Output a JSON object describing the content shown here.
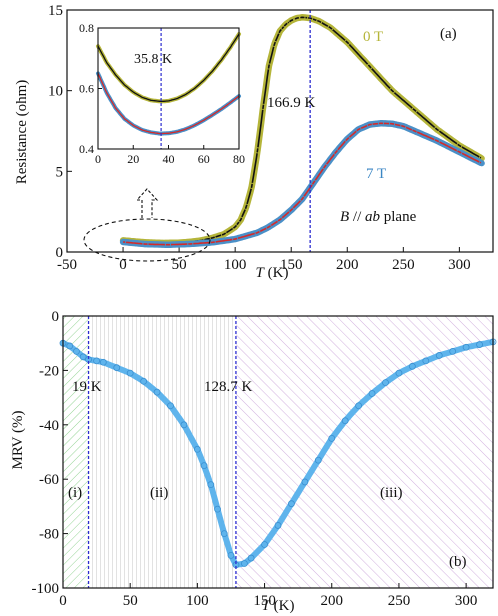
{
  "chart_data": [
    {
      "type": "scatter",
      "panel_label": "(a)",
      "xlabel_main": "T",
      "xlabel_unit": " (K)",
      "ylabel": "Resistance (ohm)",
      "xlim": [
        -50,
        330
      ],
      "ylim": [
        0,
        15
      ],
      "xticks": [
        -50,
        0,
        50,
        100,
        150,
        200,
        250,
        300
      ],
      "yticks": [
        0,
        5,
        10,
        15
      ],
      "vline": {
        "x": 166.9,
        "label": "166.9 K"
      },
      "annotation": {
        "prefix": "B",
        "mid": " // ",
        "italic2": "ab",
        "suffix": " plane"
      },
      "series": [
        {
          "name": "0 T",
          "marker_color": "#b5b53a",
          "fit_color": "#111111",
          "x": [
            0,
            20,
            35.8,
            50,
            60,
            70,
            80,
            90,
            100,
            105,
            110,
            115,
            120,
            125,
            130,
            135,
            140,
            145,
            150,
            155,
            160,
            166.9,
            175,
            185,
            200,
            220,
            240,
            260,
            280,
            300,
            320
          ],
          "y": [
            0.72,
            0.6,
            0.56,
            0.58,
            0.63,
            0.72,
            0.88,
            1.1,
            1.55,
            2.0,
            2.8,
            4.1,
            6.3,
            9.0,
            11.5,
            12.9,
            13.7,
            14.1,
            14.35,
            14.5,
            14.55,
            14.5,
            14.3,
            13.9,
            13.0,
            11.5,
            10.0,
            8.8,
            7.6,
            6.6,
            5.8
          ]
        },
        {
          "name": "7 T",
          "marker_color": "#4a90c8",
          "fit_color": "#d42a2a",
          "x": [
            0,
            20,
            40,
            60,
            80,
            100,
            120,
            130,
            140,
            150,
            160,
            170,
            180,
            190,
            200,
            210,
            220,
            230,
            240,
            250,
            260,
            280,
            300,
            320
          ],
          "y": [
            0.62,
            0.49,
            0.45,
            0.5,
            0.6,
            0.8,
            1.2,
            1.55,
            2.0,
            2.6,
            3.3,
            4.3,
            5.3,
            6.2,
            7.0,
            7.6,
            7.9,
            7.98,
            7.95,
            7.8,
            7.5,
            6.9,
            6.2,
            5.5
          ]
        }
      ],
      "inset": {
        "xlim": [
          0,
          80
        ],
        "ylim": [
          0.4,
          0.8
        ],
        "xticks": [
          0,
          20,
          40,
          60,
          80
        ],
        "yticks": [
          0.4,
          0.6,
          0.8
        ],
        "vline": {
          "x": 35.8,
          "label": "35.8 K"
        },
        "series": [
          {
            "name": "0 T",
            "x": [
              0,
              5,
              10,
              15,
              20,
              25,
              30,
              35.8,
              40,
              45,
              50,
              55,
              60,
              65,
              70,
              75,
              80
            ],
            "y": [
              0.74,
              0.685,
              0.645,
              0.612,
              0.588,
              0.571,
              0.561,
              0.557,
              0.559,
              0.567,
              0.581,
              0.601,
              0.627,
              0.658,
              0.694,
              0.735,
              0.78
            ]
          },
          {
            "name": "7 T",
            "x": [
              0,
              5,
              10,
              15,
              20,
              25,
              30,
              35,
              40,
              45,
              50,
              55,
              60,
              65,
              70,
              75,
              80
            ],
            "y": [
              0.65,
              0.585,
              0.535,
              0.5,
              0.478,
              0.463,
              0.455,
              0.451,
              0.452,
              0.457,
              0.466,
              0.479,
              0.495,
              0.513,
              0.532,
              0.553,
              0.575
            ]
          }
        ]
      }
    },
    {
      "type": "scatter",
      "panel_label": "(b)",
      "xlabel_main": "T",
      "xlabel_unit": " (K)",
      "ylabel": "MRV (%)",
      "xlim": [
        0,
        320
      ],
      "ylim": [
        -100,
        0
      ],
      "xticks": [
        0,
        50,
        100,
        150,
        200,
        250,
        300
      ],
      "yticks": [
        -100,
        -80,
        -60,
        -40,
        -20,
        0
      ],
      "vlines": [
        {
          "x": 19,
          "label": "19 K"
        },
        {
          "x": 128.7,
          "label": "128.7 K"
        }
      ],
      "regions": [
        {
          "label": "(i)",
          "from": 0,
          "to": 19,
          "color": "#7ac97a"
        },
        {
          "label": "(ii)",
          "from": 19,
          "to": 128.7,
          "color": "#b8b8b8"
        },
        {
          "label": "(iii)",
          "from": 128.7,
          "to": 320,
          "color": "#c59ad6"
        }
      ],
      "series": [
        {
          "name": "MRV",
          "marker_color": "#5fb4ec",
          "x": [
            0,
            5,
            10,
            15,
            19,
            25,
            30,
            40,
            50,
            60,
            70,
            80,
            90,
            100,
            105,
            110,
            115,
            120,
            125,
            128.7,
            135,
            140,
            150,
            160,
            170,
            180,
            190,
            200,
            210,
            220,
            230,
            240,
            250,
            260,
            270,
            280,
            290,
            300,
            310,
            320
          ],
          "y": [
            -10,
            -11,
            -13,
            -15,
            -16,
            -16.5,
            -17,
            -19,
            -21,
            -24,
            -28,
            -33,
            -40,
            -49,
            -55,
            -62,
            -71,
            -80,
            -88,
            -91.5,
            -91,
            -89,
            -84,
            -77,
            -69,
            -61,
            -53,
            -45,
            -38.5,
            -33,
            -28.5,
            -24.5,
            -21,
            -18.5,
            -16.5,
            -14.5,
            -13,
            -11.5,
            -10.5,
            -9.5
          ]
        }
      ]
    }
  ]
}
